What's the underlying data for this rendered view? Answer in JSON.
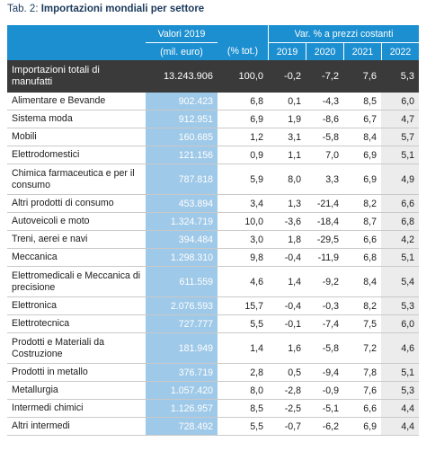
{
  "caption": {
    "prefix": "Tab. 2: ",
    "title": "Importazioni mondiali per settore"
  },
  "header": {
    "valori_line1": "Valori 2019",
    "valori_line2": "(mil. euro)",
    "pct": "(% tot.)",
    "var_title": "Var. % a prezzi costanti",
    "years": [
      "2019",
      "2020",
      "2021",
      "2022"
    ]
  },
  "total": {
    "label": "Importazioni totali di manufatti",
    "valore": "13.243.906",
    "pct": "100,0",
    "var": [
      "-0,2",
      "-7,2",
      "7,6",
      "5,3"
    ]
  },
  "rows": [
    {
      "label": "Alimentare e Bevande",
      "valore": "902.423",
      "pct": "6,8",
      "var": [
        "0,1",
        "-4,3",
        "8,5",
        "6,0"
      ]
    },
    {
      "label": "Sistema moda",
      "valore": "912.951",
      "pct": "6,9",
      "var": [
        "1,9",
        "-8,6",
        "6,7",
        "4,7"
      ]
    },
    {
      "label": "Mobili",
      "valore": "160.685",
      "pct": "1,2",
      "var": [
        "3,1",
        "-5,8",
        "8,4",
        "5,7"
      ]
    },
    {
      "label": "Elettrodomestici",
      "valore": "121.156",
      "pct": "0,9",
      "var": [
        "1,1",
        "7,0",
        "6,9",
        "5,1"
      ]
    },
    {
      "label": "Chimica farmaceutica e per il consumo",
      "valore": "787.818",
      "pct": "5,9",
      "var": [
        "8,0",
        "3,3",
        "6,9",
        "4,9"
      ]
    },
    {
      "label": "Altri prodotti di consumo",
      "valore": "453.894",
      "pct": "3,4",
      "var": [
        "1,3",
        "-21,4",
        "8,2",
        "6,6"
      ]
    },
    {
      "label": "Autoveicoli e moto",
      "valore": "1.324.719",
      "pct": "10,0",
      "var": [
        "-3,6",
        "-18,4",
        "8,7",
        "6,8"
      ]
    },
    {
      "label": "Treni, aerei e navi",
      "valore": "394.484",
      "pct": "3,0",
      "var": [
        "1,8",
        "-29,5",
        "6,6",
        "4,2"
      ]
    },
    {
      "label": "Meccanica",
      "valore": "1.298.310",
      "pct": "9,8",
      "var": [
        "-0,4",
        "-11,9",
        "6,8",
        "5,1"
      ]
    },
    {
      "label": "Elettromedicali e Meccanica di precisione",
      "valore": "611.559",
      "pct": "4,6",
      "var": [
        "1,4",
        "-9,2",
        "8,4",
        "5,4"
      ]
    },
    {
      "label": "Elettronica",
      "valore": "2.076.593",
      "pct": "15,7",
      "var": [
        "-0,4",
        "-0,3",
        "8,2",
        "5,3"
      ]
    },
    {
      "label": "Elettrotecnica",
      "valore": "727.777",
      "pct": "5,5",
      "var": [
        "-0,1",
        "-7,4",
        "7,5",
        "6,0"
      ]
    },
    {
      "label": "Prodotti e Materiali da Costruzione",
      "valore": "181.949",
      "pct": "1,4",
      "var": [
        "1,6",
        "-5,8",
        "7,2",
        "4,6"
      ]
    },
    {
      "label": "Prodotti in metallo",
      "valore": "376.719",
      "pct": "2,8",
      "var": [
        "0,5",
        "-9,4",
        "7,8",
        "5,1"
      ]
    },
    {
      "label": "Metallurgia",
      "valore": "1.057.420",
      "pct": "8,0",
      "var": [
        "-2,8",
        "-0,9",
        "7,6",
        "5,3"
      ]
    },
    {
      "label": "Intermedi chimici",
      "valore": "1.126.957",
      "pct": "8,5",
      "var": [
        "-2,5",
        "-5,1",
        "6,6",
        "4,4"
      ]
    },
    {
      "label": "Altri intermedi",
      "valore": "728.492",
      "pct": "5,5",
      "var": [
        "-0,7",
        "-6,2",
        "6,9",
        "4,4"
      ]
    }
  ]
}
